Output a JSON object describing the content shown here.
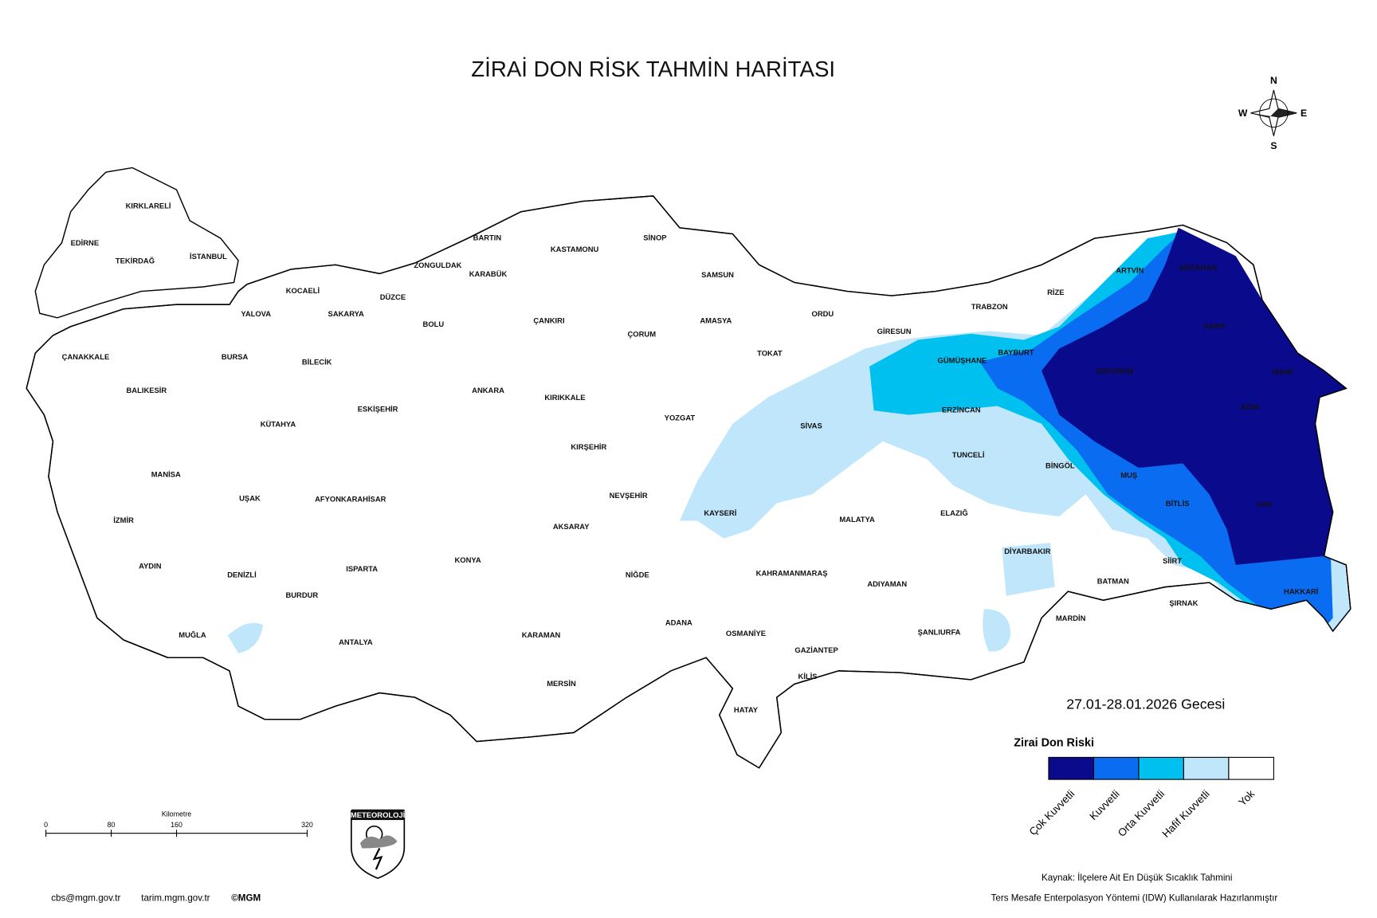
{
  "title": "ZİRAİ DON RİSK TAHMİN HARİTASI",
  "date": "27.01-28.01.2026 Gecesi",
  "compass": {
    "n": "N",
    "e": "E",
    "s": "S",
    "w": "W"
  },
  "legend": {
    "title": "Zirai Don Riski",
    "items": [
      {
        "label": "Çok Kuvvetli",
        "color": "#0a0a8c"
      },
      {
        "label": "Kuvvetli",
        "color": "#0a6cf0"
      },
      {
        "label": "Orta Kuvvetli",
        "color": "#00c0f0"
      },
      {
        "label": "Hafif Kuvvetli",
        "color": "#bfe6fa"
      },
      {
        "label": "Yok",
        "color": "#ffffff"
      }
    ]
  },
  "scale_bar": {
    "unit": "Kilometre",
    "ticks": [
      0,
      80,
      160,
      320
    ]
  },
  "logo": "METEOROLOJİ",
  "source": {
    "line1": "Kaynak: İlçelere Ait En Düşük Sıcaklık Tahmini",
    "line2": "Ters Mesafe Enterpolasyon Yöntemi (IDW) Kullanılarak Hazırlanmıştır"
  },
  "footer": {
    "email": "cbs@mgm.gov.tr",
    "site": "tarim.mgm.gov.tr",
    "copyright": "©MGM"
  },
  "provinces": [
    "KIRKLARELİ",
    "EDİRNE",
    "TEKİRDAĞ",
    "İSTANBUL",
    "KOCAELİ",
    "YALOVA",
    "SAKARYA",
    "DÜZCE",
    "ZONGULDAK",
    "BARTIN",
    "KARABÜK",
    "KASTAMONU",
    "SİNOP",
    "SAMSUN",
    "ÇANAKKALE",
    "BALIKESİR",
    "BURSA",
    "BİLECİK",
    "BOLU",
    "ÇANKIRI",
    "ÇORUM",
    "AMASYA",
    "ORDU",
    "TOKAT",
    "GİRESUN",
    "TRABZON",
    "RİZE",
    "ARTVİN",
    "ARDAHAN",
    "KARS",
    "GÜMÜŞHANE",
    "BAYBURT",
    "ERZURUM",
    "IĞDIR",
    "AĞRI",
    "ESKİŞEHİR",
    "ANKARA",
    "KIRIKKALE",
    "YOZGAT",
    "SİVAS",
    "ERZİNCAN",
    "KÜTAHYA",
    "MANİSA",
    "UŞAK",
    "AFYONKARAHİSAR",
    "KIRŞEHİR",
    "NEVŞEHİR",
    "KAYSERİ",
    "TUNCELİ",
    "BİNGÖL",
    "MUŞ",
    "BİTLİS",
    "VAN",
    "İZMİR",
    "AKSARAY",
    "MALATYA",
    "ELAZIĞ",
    "AYDIN",
    "DENİZLİ",
    "ISPARTA",
    "KONYA",
    "NİĞDE",
    "KAHRAMANMARAŞ",
    "DİYARBAKIR",
    "BATMAN",
    "SİİRT",
    "HAKKARİ",
    "ADIYAMAN",
    "BURDUR",
    "MUĞLA",
    "ANTALYA",
    "KARAMAN",
    "ADANA",
    "OSMANİYE",
    "ŞANLIURFA",
    "MARDİN",
    "ŞIRNAK",
    "GAZİANTEP",
    "KİLİS",
    "MERSİN",
    "HATAY"
  ]
}
